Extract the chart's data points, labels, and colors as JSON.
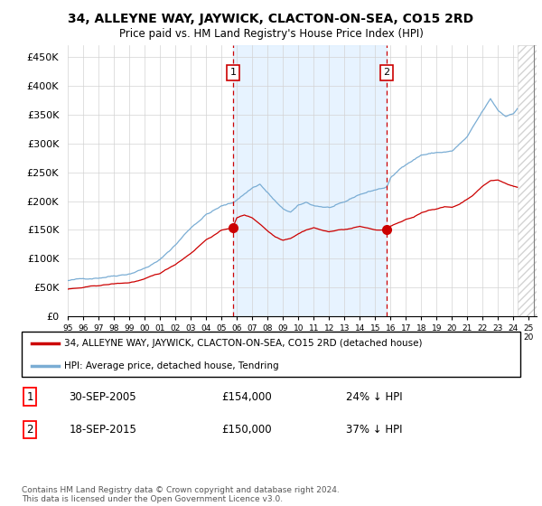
{
  "title": "34, ALLEYNE WAY, JAYWICK, CLACTON-ON-SEA, CO15 2RD",
  "subtitle": "Price paid vs. HM Land Registry's House Price Index (HPI)",
  "ylim": [
    0,
    470000
  ],
  "yticks": [
    0,
    50000,
    100000,
    150000,
    200000,
    250000,
    300000,
    350000,
    400000,
    450000
  ],
  "ytick_labels": [
    "£0",
    "£50K",
    "£100K",
    "£150K",
    "£200K",
    "£250K",
    "£300K",
    "£350K",
    "£400K",
    "£450K"
  ],
  "hpi_color": "#7aadd4",
  "price_color": "#cc0000",
  "vline_color": "#cc0000",
  "sale1_x": 2005.75,
  "sale2_x": 2015.75,
  "sale1_price": 154000,
  "sale2_price": 150000,
  "sale1_date": "30-SEP-2005",
  "sale2_date": "18-SEP-2015",
  "sale1_pct": "24% ↓ HPI",
  "sale2_pct": "37% ↓ HPI",
  "legend_line1": "34, ALLEYNE WAY, JAYWICK, CLACTON-ON-SEA, CO15 2RD (detached house)",
  "legend_line2": "HPI: Average price, detached house, Tendring",
  "footnote": "Contains HM Land Registry data © Crown copyright and database right 2024.\nThis data is licensed under the Open Government Licence v3.0.",
  "xmin": 1995.0,
  "xmax": 2025.5,
  "hatch_start": 2024.25,
  "shade_fill": "#ddeeff",
  "background_color": "#ffffff"
}
